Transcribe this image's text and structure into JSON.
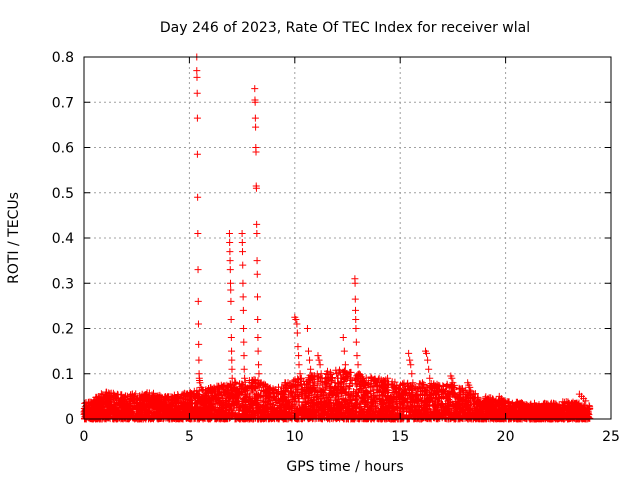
{
  "chart_data": {
    "type": "scatter",
    "title": "Day 246 of 2023, Rate Of TEC Index for receiver wlal",
    "xlabel": "GPS time / hours",
    "ylabel": "ROTI / TECUs",
    "xlim": [
      0,
      25
    ],
    "ylim": [
      0,
      0.8
    ],
    "xticks": [
      0,
      5,
      10,
      15,
      20,
      25
    ],
    "yticks": [
      0,
      0.1,
      0.2,
      0.3,
      0.4,
      0.5,
      0.6,
      0.7,
      0.8
    ],
    "xtick_labels": [
      "0",
      "5",
      "10",
      "15",
      "20",
      "25"
    ],
    "ytick_labels": [
      "0",
      "0.1",
      "0.2",
      "0.3",
      "0.4",
      "0.5",
      "0.6",
      "0.7",
      "0.8"
    ],
    "grid": true,
    "marker": "+",
    "marker_color": "#ff0000",
    "series": [
      {
        "x": [
          5.35,
          5.35,
          5.36,
          5.37,
          5.38,
          5.38,
          5.39,
          5.4,
          5.41,
          5.42,
          5.43,
          5.44,
          5.45,
          5.46,
          5.47,
          5.48,
          5.5,
          5.55,
          5.6,
          5.65,
          5.7,
          5.75,
          5.8,
          6.9,
          6.91,
          6.92,
          6.93,
          6.94,
          6.95,
          6.96,
          6.97,
          6.98,
          6.99,
          7.0,
          7.01,
          7.02,
          7.03,
          7.05,
          7.08,
          7.1,
          7.5,
          7.51,
          7.52,
          7.53,
          7.54,
          7.55,
          7.56,
          7.57,
          7.58,
          7.59,
          7.6,
          7.62,
          7.65,
          8.1,
          8.11,
          8.12,
          8.13,
          8.14,
          8.15,
          8.16,
          8.17,
          8.18,
          8.19,
          8.2,
          8.21,
          8.22,
          8.23,
          8.24,
          8.25,
          8.26,
          8.28,
          8.3,
          8.35,
          10.0,
          10.05,
          10.1,
          10.12,
          10.15,
          10.18,
          10.2,
          10.25,
          10.3,
          10.6,
          10.65,
          10.7,
          10.75,
          10.8,
          10.85,
          11.1,
          11.15,
          11.2,
          11.25,
          11.3,
          12.3,
          12.35,
          12.4,
          12.45,
          12.5,
          12.85,
          12.86,
          12.87,
          12.88,
          12.89,
          12.9,
          12.92,
          12.95,
          13.0,
          13.05,
          13.1,
          13.2,
          14.0,
          14.1,
          14.2,
          14.3,
          14.4,
          15.4,
          15.45,
          15.5,
          15.55,
          15.6,
          16.2,
          16.25,
          16.3,
          16.35,
          16.4,
          17.4,
          17.45,
          17.5,
          17.55,
          18.2,
          18.25,
          18.3,
          18.35,
          19.7,
          19.8,
          19.9,
          20.0,
          23.5,
          23.6,
          23.7,
          23.8
        ],
        "y": [
          0.8,
          0.77,
          0.755,
          0.72,
          0.665,
          0.585,
          0.49,
          0.41,
          0.33,
          0.26,
          0.21,
          0.165,
          0.13,
          0.1,
          0.09,
          0.085,
          0.08,
          0.07,
          0.065,
          0.05,
          0.045,
          0.04,
          0.035,
          0.41,
          0.39,
          0.37,
          0.35,
          0.33,
          0.3,
          0.285,
          0.26,
          0.22,
          0.18,
          0.15,
          0.13,
          0.11,
          0.09,
          0.07,
          0.06,
          0.05,
          0.41,
          0.39,
          0.37,
          0.34,
          0.3,
          0.27,
          0.24,
          0.2,
          0.17,
          0.14,
          0.11,
          0.09,
          0.07,
          0.73,
          0.705,
          0.7,
          0.665,
          0.645,
          0.6,
          0.59,
          0.515,
          0.51,
          0.43,
          0.41,
          0.35,
          0.32,
          0.27,
          0.22,
          0.18,
          0.15,
          0.12,
          0.1,
          0.08,
          0.225,
          0.22,
          0.21,
          0.19,
          0.16,
          0.14,
          0.12,
          0.1,
          0.09,
          0.2,
          0.15,
          0.13,
          0.11,
          0.09,
          0.08,
          0.14,
          0.13,
          0.12,
          0.1,
          0.09,
          0.18,
          0.15,
          0.12,
          0.1,
          0.09,
          0.31,
          0.3,
          0.265,
          0.24,
          0.22,
          0.2,
          0.17,
          0.14,
          0.12,
          0.1,
          0.09,
          0.08,
          0.09,
          0.08,
          0.085,
          0.08,
          0.09,
          0.145,
          0.13,
          0.12,
          0.1,
          0.08,
          0.15,
          0.145,
          0.13,
          0.11,
          0.09,
          0.095,
          0.09,
          0.08,
          0.07,
          0.08,
          0.075,
          0.07,
          0.06,
          0.05,
          0.045,
          0.04,
          0.035,
          0.055,
          0.05,
          0.045,
          0.04
        ]
      }
    ],
    "dense_band": {
      "description_values": {
        "x_range": [
          0,
          24
        ],
        "baseline_max": [
          [
            0,
            0.035
          ],
          [
            1,
            0.06
          ],
          [
            2,
            0.055
          ],
          [
            3,
            0.06
          ],
          [
            4,
            0.05
          ],
          [
            5,
            0.06
          ],
          [
            6,
            0.07
          ],
          [
            7,
            0.08
          ],
          [
            8,
            0.09
          ],
          [
            9,
            0.07
          ],
          [
            10,
            0.09
          ],
          [
            11,
            0.1
          ],
          [
            12,
            0.11
          ],
          [
            13,
            0.1
          ],
          [
            14,
            0.09
          ],
          [
            15,
            0.08
          ],
          [
            16,
            0.08
          ],
          [
            17,
            0.08
          ],
          [
            18,
            0.07
          ],
          [
            19,
            0.05
          ],
          [
            20,
            0.04
          ],
          [
            21,
            0.035
          ],
          [
            22,
            0.035
          ],
          [
            23,
            0.04
          ],
          [
            24,
            0.03
          ]
        ]
      }
    }
  }
}
